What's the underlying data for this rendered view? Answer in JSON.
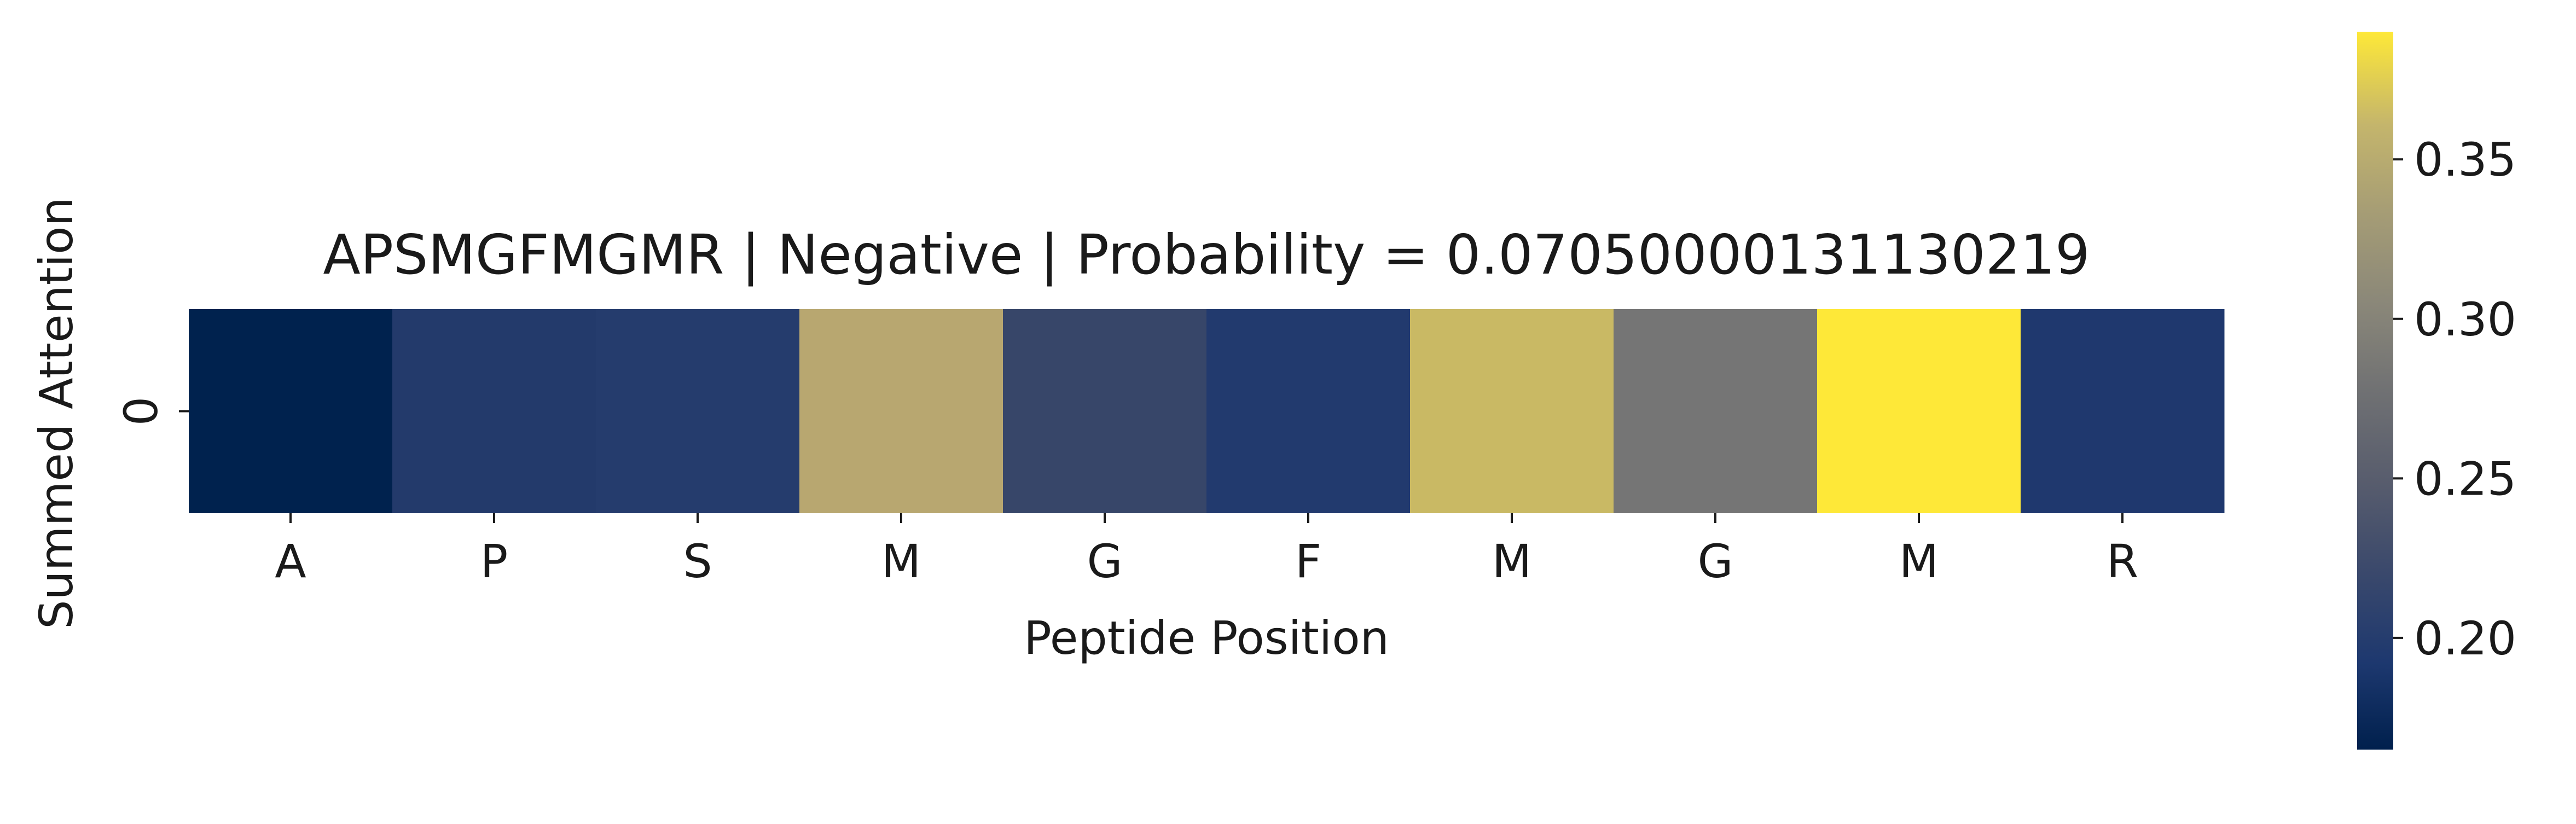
{
  "chart_data": {
    "type": "heatmap",
    "title": "APSMGFMGMR | Negative | Probability = 0.07050000131130219",
    "xlabel": "Peptide Position",
    "ylabel": "Summed Attention",
    "x_categories": [
      "A",
      "P",
      "S",
      "M",
      "G",
      "F",
      "M",
      "G",
      "M",
      "R"
    ],
    "y_categories": [
      "0"
    ],
    "values": [
      [
        0.168,
        0.205,
        0.205,
        0.317,
        0.225,
        0.205,
        0.337,
        0.276,
        0.389,
        0.198
      ]
    ],
    "colormap": "cividis",
    "colorbar": {
      "range": [
        0.165,
        0.39
      ],
      "ticks": [
        0.2,
        0.25,
        0.3,
        0.35
      ],
      "tick_labels": [
        "0.20",
        "0.25",
        "0.30",
        "0.35"
      ]
    },
    "cell_colors": [
      "#00224e",
      "#233a6b",
      "#253c6d",
      "#b8a770",
      "#374669",
      "#223a6e",
      "#c9b964",
      "#757575",
      "#fee838",
      "#1f386e"
    ],
    "grid": false
  }
}
